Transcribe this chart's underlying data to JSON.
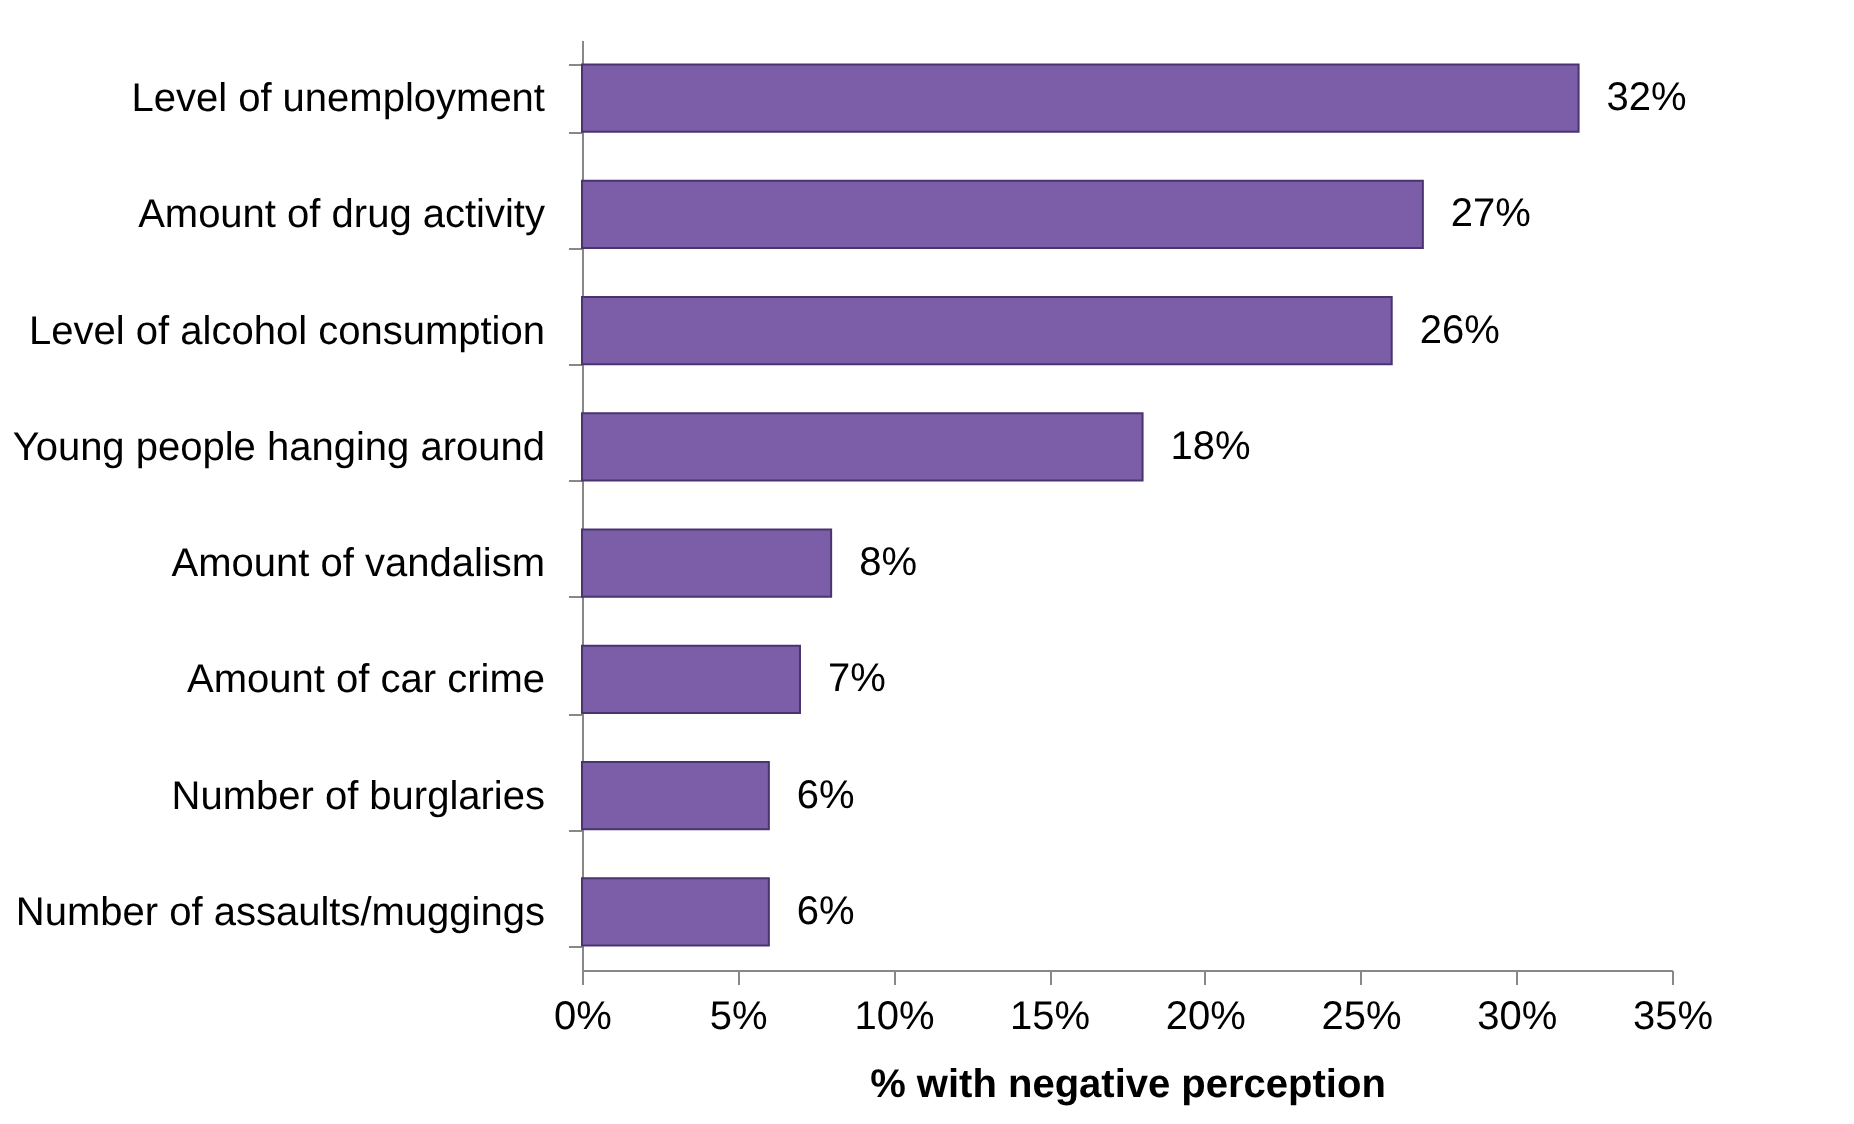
{
  "chart_data": {
    "type": "bar",
    "orientation": "horizontal",
    "xlabel": "% with negative perception",
    "categories": [
      "Level of unemployment",
      "Amount of drug activity",
      "Level of alcohol consumption",
      "Young people hanging around",
      "Amount of vandalism",
      "Amount of car crime",
      "Number of burglaries",
      "Number of assaults/muggings"
    ],
    "values": [
      32,
      27,
      26,
      18,
      8,
      7,
      6,
      6
    ],
    "value_labels": [
      "32%",
      "27%",
      "26%",
      "18%",
      "8%",
      "7%",
      "6%",
      "6%"
    ],
    "color": "#7b5ea7",
    "xlim": [
      0,
      35
    ],
    "xticks": [
      {
        "value": 0,
        "label": "0%"
      },
      {
        "value": 5,
        "label": "5%"
      },
      {
        "value": 10,
        "label": "10%"
      },
      {
        "value": 15,
        "label": "15%"
      },
      {
        "value": 20,
        "label": "20%"
      },
      {
        "value": 25,
        "label": "25%"
      },
      {
        "value": 30,
        "label": "30%"
      },
      {
        "value": 35,
        "label": "35%"
      }
    ],
    "grid": false
  }
}
